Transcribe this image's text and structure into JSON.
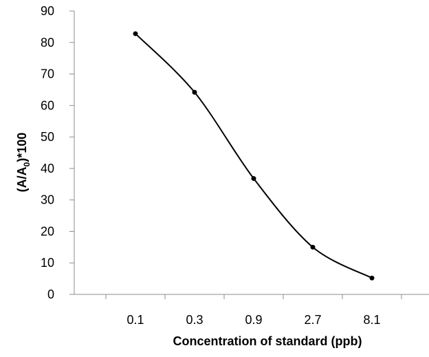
{
  "chart_data": {
    "type": "line",
    "categories": [
      "0.1",
      "0.3",
      "0.9",
      "2.7",
      "8.1"
    ],
    "series": [
      {
        "values": [
          82.8,
          64.2,
          36.8,
          15.0,
          5.2
        ]
      }
    ],
    "xlabel": "Concentration of standard (ppb)",
    "ylabel": {
      "prefix": "(A/A",
      "subscript": "0",
      "suffix": ")*100"
    },
    "ylim": [
      0,
      90
    ],
    "yticks": [
      0,
      10,
      20,
      30,
      40,
      50,
      60,
      70,
      80,
      90
    ],
    "grid": false,
    "smooth": true,
    "line_color": "#000000",
    "marker_color": "#000000"
  }
}
